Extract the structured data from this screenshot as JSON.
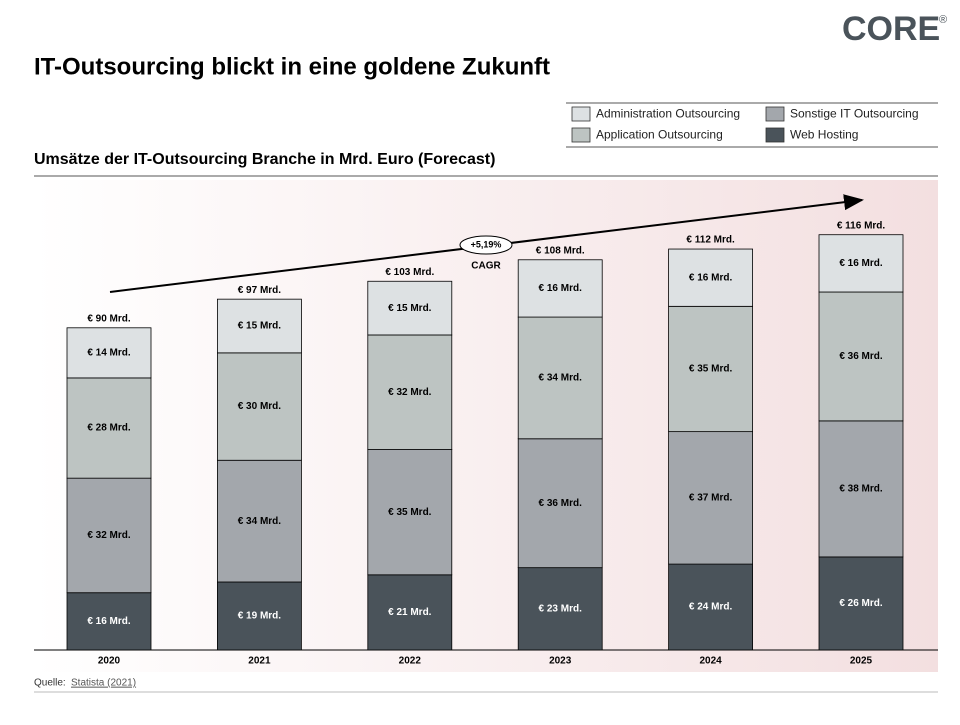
{
  "logo": {
    "text": "CORE",
    "mark": "®"
  },
  "title": "IT-Outsourcing blickt in eine goldene Zukunft",
  "source": {
    "label": "Quelle:",
    "link": "Statista (2021)"
  },
  "chart_data": {
    "type": "stacked_bar",
    "title": "Umsätze der IT-Outsourcing Branche in Mrd. Euro (Forecast)",
    "categories": [
      "2020",
      "2021",
      "2022",
      "2023",
      "2024",
      "2025"
    ],
    "series": [
      {
        "name": "Web Hosting",
        "color": "#4a535a",
        "values": [
          16,
          19,
          21,
          23,
          24,
          26
        ],
        "value_labels": [
          "€ 16 Mrd.",
          "€ 19 Mrd.",
          "€ 21 Mrd.",
          "€ 23 Mrd.",
          "€ 24 Mrd.",
          "€ 26 Mrd."
        ]
      },
      {
        "name": "Sonstige IT Outsourcing",
        "color": "#a3a7ac",
        "values": [
          32,
          34,
          35,
          36,
          37,
          38
        ],
        "value_labels": [
          "€ 32 Mrd.",
          "€ 34 Mrd.",
          "€ 35 Mrd.",
          "€ 36 Mrd.",
          "€ 37 Mrd.",
          "€ 38 Mrd."
        ]
      },
      {
        "name": "Application Outsourcing",
        "color": "#bdc4c2",
        "values": [
          28,
          30,
          32,
          34,
          35,
          36
        ],
        "value_labels": [
          "€ 28 Mrd.",
          "€ 30 Mrd.",
          "€ 32 Mrd.",
          "€ 34 Mrd.",
          "€ 35 Mrd.",
          "€ 36 Mrd."
        ]
      },
      {
        "name": "Administration Outsourcing",
        "color": "#dde1e3",
        "values": [
          14,
          15,
          15,
          16,
          16,
          16
        ],
        "value_labels": [
          "€ 14 Mrd.",
          "€ 15 Mrd.",
          "€ 15 Mrd.",
          "€ 16 Mrd.",
          "€ 16 Mrd.",
          "€ 16 Mrd."
        ]
      }
    ],
    "totals": {
      "values": [
        90,
        97,
        103,
        108,
        112,
        116
      ],
      "value_labels": [
        "€ 90 Mrd.",
        "€ 97 Mrd.",
        "€ 103 Mrd.",
        "€ 108 Mrd.",
        "€ 112 Mrd.",
        "€ 116 Mrd."
      ]
    },
    "annotation": {
      "value": "+5,19%",
      "label": "CAGR"
    }
  }
}
